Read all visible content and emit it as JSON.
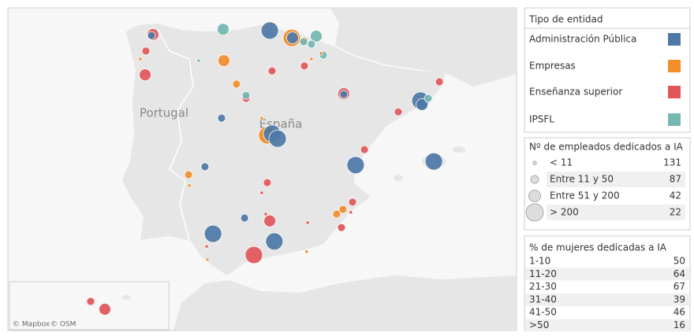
{
  "map": {
    "labels": [
      "Portugal",
      "España"
    ],
    "attribution": [
      "© Mapbox",
      "© OSM"
    ],
    "points": [
      {
        "lon": -3.79,
        "lat": 43.59,
        "type": 0,
        "size": 3
      },
      {
        "lon": 2.18,
        "lat": 41.47,
        "type": 0,
        "size": 3
      },
      {
        "lon": 2.24,
        "lat": 41.35,
        "type": 0,
        "size": 2
      },
      {
        "lon": -3.89,
        "lat": 40.42,
        "type": 1,
        "size": 3
      },
      {
        "lon": -3.7,
        "lat": 40.47,
        "type": 0,
        "size": 3
      },
      {
        "lon": -3.48,
        "lat": 40.32,
        "type": 0,
        "size": 3
      },
      {
        "lon": -0.39,
        "lat": 39.52,
        "type": 0,
        "size": 3
      },
      {
        "lon": 2.71,
        "lat": 39.63,
        "type": 0,
        "size": 3
      },
      {
        "lon": -6.04,
        "lat": 37.44,
        "type": 0,
        "size": 3
      },
      {
        "lon": -3.61,
        "lat": 37.21,
        "type": 0,
        "size": 3
      },
      {
        "lon": -4.42,
        "lat": 36.8,
        "type": 2,
        "size": 3
      },
      {
        "lon": -2.92,
        "lat": 43.37,
        "type": 1,
        "size": 3
      },
      {
        "lon": -2.89,
        "lat": 43.37,
        "type": 0,
        "size": 2
      },
      {
        "lon": -5.64,
        "lat": 43.63,
        "type": 3,
        "size": 2
      },
      {
        "lon": -1.95,
        "lat": 43.42,
        "type": 3,
        "size": 2
      },
      {
        "lon": -8.42,
        "lat": 43.47,
        "type": 2,
        "size": 2
      },
      {
        "lon": -8.73,
        "lat": 42.25,
        "type": 2,
        "size": 2
      },
      {
        "lon": -5.61,
        "lat": 42.68,
        "type": 1,
        "size": 2
      },
      {
        "lon": -0.86,
        "lat": 41.68,
        "type": 2,
        "size": 2
      },
      {
        "lon": -3.79,
        "lat": 37.83,
        "type": 2,
        "size": 2
      },
      {
        "lon": -8.48,
        "lat": 43.44,
        "type": 0,
        "size": 1
      },
      {
        "lon": -0.86,
        "lat": 41.66,
        "type": 0,
        "size": 1
      },
      {
        "lon": -5.7,
        "lat": 40.94,
        "type": 0,
        "size": 1
      },
      {
        "lon": -6.36,
        "lat": 39.47,
        "type": 0,
        "size": 1
      },
      {
        "lon": -4.79,
        "lat": 37.92,
        "type": 0,
        "size": 1
      },
      {
        "lon": -5.11,
        "lat": 41.97,
        "type": 1,
        "size": 1
      },
      {
        "lon": -7.01,
        "lat": 39.23,
        "type": 1,
        "size": 1
      },
      {
        "lon": -1.14,
        "lat": 38.04,
        "type": 1,
        "size": 1
      },
      {
        "lon": -0.89,
        "lat": 38.18,
        "type": 1,
        "size": 1
      },
      {
        "lon": -2.42,
        "lat": 43.28,
        "type": 1,
        "size": 1
      },
      {
        "lon": -8.7,
        "lat": 42.97,
        "type": 2,
        "size": 1
      },
      {
        "lon": -3.7,
        "lat": 42.37,
        "type": 2,
        "size": 1
      },
      {
        "lon": -2.42,
        "lat": 42.52,
        "type": 2,
        "size": 1
      },
      {
        "lon": 1.3,
        "lat": 41.13,
        "type": 2,
        "size": 1
      },
      {
        "lon": 2.93,
        "lat": 42.04,
        "type": 2,
        "size": 1
      },
      {
        "lon": -0.04,
        "lat": 39.99,
        "type": 2,
        "size": 1
      },
      {
        "lon": -0.51,
        "lat": 38.4,
        "type": 2,
        "size": 1
      },
      {
        "lon": -0.95,
        "lat": 37.63,
        "type": 2,
        "size": 1
      },
      {
        "lon": -3.89,
        "lat": 38.99,
        "type": 2,
        "size": 1
      },
      {
        "lon": -4.73,
        "lat": 41.54,
        "type": 2,
        "size": 1
      },
      {
        "lon": -2.14,
        "lat": 43.18,
        "type": 3,
        "size": 1
      },
      {
        "lon": -2.45,
        "lat": 43.25,
        "type": 3,
        "size": 1
      },
      {
        "lon": -4.73,
        "lat": 41.63,
        "type": 3,
        "size": 1
      },
      {
        "lon": 2.49,
        "lat": 41.54,
        "type": 3,
        "size": 1
      },
      {
        "lon": -1.67,
        "lat": 42.85,
        "type": 3,
        "size": 1
      },
      {
        "lon": -4.11,
        "lat": 40.94,
        "type": 1,
        "size": 0
      },
      {
        "lon": -2.14,
        "lat": 42.73,
        "type": 1,
        "size": 0
      },
      {
        "lon": -2.33,
        "lat": 36.9,
        "type": 1,
        "size": 0
      },
      {
        "lon": -6.26,
        "lat": 36.66,
        "type": 1,
        "size": 0
      },
      {
        "lon": -6.98,
        "lat": 38.9,
        "type": 1,
        "size": 0
      },
      {
        "lon": -8.92,
        "lat": 42.73,
        "type": 1,
        "size": 0
      },
      {
        "lon": -1.76,
        "lat": 42.9,
        "type": 1,
        "size": 0
      },
      {
        "lon": -3.95,
        "lat": 38.04,
        "type": 2,
        "size": 0
      },
      {
        "lon": -4.11,
        "lat": 38.68,
        "type": 2,
        "size": 0
      },
      {
        "lon": -2.29,
        "lat": 37.78,
        "type": 2,
        "size": 0
      },
      {
        "lon": -0.58,
        "lat": 38.09,
        "type": 2,
        "size": 0
      },
      {
        "lon": -6.29,
        "lat": 37.06,
        "type": 2,
        "size": 0
      },
      {
        "lon": -6.61,
        "lat": 42.68,
        "type": 3,
        "size": 0
      }
    ],
    "inset_points": [
      {
        "lon": -16.25,
        "lat": 28.47,
        "type": 2,
        "size": 1
      },
      {
        "lon": -15.43,
        "lat": 28.1,
        "type": 2,
        "size": 2
      }
    ]
  },
  "legend_type": {
    "title": "Tipo de entidad",
    "items": [
      {
        "label": "Administración Pública",
        "color": "#4e79a7"
      },
      {
        "label": "Empresas",
        "color": "#f28e2b"
      },
      {
        "label": "Enseñanza superior",
        "color": "#e15759"
      },
      {
        "label": "IPSFL",
        "color": "#76b7b2"
      }
    ]
  },
  "legend_size": {
    "title": "Nº de empleados dedicados a IA",
    "items": [
      {
        "label": "< 11",
        "count": 131
      },
      {
        "label": "Entre 11 y 50",
        "count": 87
      },
      {
        "label": "Entre 51 y 200",
        "count": 42
      },
      {
        "label": "> 200",
        "count": 22
      }
    ]
  },
  "legend_women": {
    "title": "% de mujeres dedicadas a IA",
    "rows": [
      {
        "label": "1-10",
        "count": 50
      },
      {
        "label": "11-20",
        "count": 64
      },
      {
        "label": "21-30",
        "count": 67
      },
      {
        "label": "31-40",
        "count": 39
      },
      {
        "label": "41-50",
        "count": 46
      },
      {
        "label": ">50",
        "count": 16
      }
    ]
  }
}
